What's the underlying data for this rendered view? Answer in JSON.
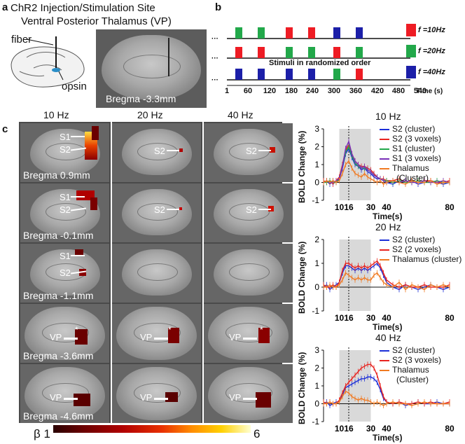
{
  "panel_a": {
    "letter": "a",
    "title_line1": "ChR2 Injection/Stimulation Site",
    "title_line2": "Ventral Posterior Thalamus (VP)",
    "fiber_label": "fiber",
    "opsin_label": "opsin",
    "bregma_label": "Bregma -3.3mm"
  },
  "panel_b": {
    "letter": "b",
    "ellipsis": "···",
    "annotation": "Stimuli in randomized order",
    "time_unit": "Time (s)",
    "x_ticks": [
      "1",
      "60",
      "120",
      "180",
      "240",
      "300",
      "360",
      "420",
      "480",
      "540"
    ],
    "legend": [
      {
        "label": "f =10Hz",
        "color": "#ee1c24"
      },
      {
        "label": "f =20Hz",
        "color": "#22a84a"
      },
      {
        "label": "f =40Hz",
        "color": "#1c1fa8"
      }
    ],
    "rows": [
      [
        "green",
        "green",
        "red",
        "red",
        "blue",
        "blue"
      ],
      [
        "red",
        "red",
        "green",
        "green",
        "red",
        "green"
      ],
      [
        "blue",
        "blue",
        "blue",
        "blue",
        "green",
        "red"
      ]
    ]
  },
  "panel_c": {
    "letter": "c",
    "columns": [
      "10 Hz",
      "20 Hz",
      "40 Hz"
    ],
    "rows": [
      {
        "bregma": "Bregma 0.9mm",
        "labels_10": [
          "S1",
          "S2"
        ],
        "label_20": "S2",
        "label_40": "S2"
      },
      {
        "bregma": "Bregma -0.1mm",
        "labels_10": [
          "S1",
          "S2"
        ],
        "label_20": "S2",
        "label_40": "S2"
      },
      {
        "bregma": "Bregma -1.1mm",
        "labels_10": [
          "S1",
          "S2"
        ],
        "label_20": "",
        "label_40": ""
      },
      {
        "bregma": "Bregma -3.6mm",
        "labels_10": [
          "VP"
        ],
        "label_20": "VP",
        "label_40": "VP"
      },
      {
        "bregma": "Bregma -4.6mm",
        "labels_10": [
          "VP"
        ],
        "label_20": "VP",
        "label_40": "VP"
      }
    ],
    "asterisk": "*",
    "colorbar": {
      "min_label": "β 1",
      "max_label": "6"
    }
  },
  "chart_data": [
    {
      "type": "line",
      "title": "10 Hz",
      "xlabel": "Time(s)",
      "ylabel": "BOLD Change (%)",
      "xlim": [
        0,
        80
      ],
      "ylim": [
        -1,
        3
      ],
      "x_ticks": [
        "10",
        "16",
        "30",
        "40",
        "80"
      ],
      "y_ticks": [
        "-1",
        "0",
        "1",
        "2",
        "3"
      ],
      "stim_window": [
        10,
        30
      ],
      "x": [
        0,
        2,
        4,
        6,
        8,
        10,
        12,
        14,
        16,
        18,
        20,
        22,
        24,
        26,
        28,
        30,
        32,
        34,
        36,
        38,
        40,
        44,
        48,
        52,
        56,
        60,
        64,
        68,
        72,
        76,
        80
      ],
      "series": [
        {
          "name": "S2 (cluster)",
          "color": "#1c2fd8",
          "values": [
            0,
            0.1,
            -0.1,
            0.1,
            0,
            0.2,
            0.8,
            1.6,
            1.9,
            1.4,
            1.0,
            0.9,
            0.7,
            0.8,
            0.6,
            0.5,
            0.3,
            0.2,
            0.2,
            0.1,
            0,
            -0.1,
            0.1,
            0,
            0.1,
            -0.1,
            0,
            0.1,
            0,
            -0.1,
            0
          ]
        },
        {
          "name": "S2 (3 voxels)",
          "color": "#e8231f",
          "values": [
            0.1,
            0,
            0.1,
            -0.1,
            0.1,
            0.3,
            1.0,
            1.8,
            2.1,
            1.6,
            1.2,
            1.0,
            0.9,
            0.9,
            0.8,
            0.7,
            0.5,
            0.3,
            0.2,
            0.2,
            0.1,
            0.1,
            0.2,
            0,
            0.1,
            0,
            0.1,
            0.1,
            0,
            0,
            0.1
          ]
        },
        {
          "name": "S1 (cluster)",
          "color": "#22a84a",
          "values": [
            0,
            0,
            0.1,
            0,
            0,
            0.2,
            0.9,
            1.7,
            2.0,
            1.5,
            1.1,
            0.9,
            0.8,
            0.8,
            0.7,
            0.6,
            0.4,
            0.3,
            0.2,
            0.1,
            0.1,
            0,
            0.1,
            0,
            0,
            0.1,
            0,
            0,
            0.1,
            0,
            0
          ]
        },
        {
          "name": "S1 (3 voxels)",
          "color": "#7a2fb8",
          "values": [
            0,
            0.1,
            0,
            0,
            0.1,
            0.2,
            0.9,
            1.9,
            2.3,
            1.6,
            1.2,
            1.0,
            0.8,
            0.9,
            0.7,
            0.6,
            0.4,
            0.3,
            0.2,
            0.1,
            0,
            0.1,
            0,
            0.1,
            0,
            0,
            0.1,
            0,
            0,
            0.1,
            0
          ]
        },
        {
          "name": "Thalamus (Cluster)",
          "color": "#f07a22",
          "values": [
            0,
            0.1,
            0,
            0.1,
            0,
            0.1,
            0.5,
            1.0,
            1.2,
            0.8,
            0.5,
            0.4,
            0.3,
            0.5,
            0.3,
            0.2,
            0.1,
            0,
            0.1,
            -0.1,
            0,
            0.1,
            0,
            -0.1,
            0.1,
            0,
            0,
            0.1,
            -0.1,
            0,
            0
          ]
        }
      ]
    },
    {
      "type": "line",
      "title": "20 Hz",
      "xlabel": "Time(s)",
      "ylabel": "BOLD Change (%)",
      "xlim": [
        0,
        80
      ],
      "ylim": [
        -1,
        2
      ],
      "x_ticks": [
        "10",
        "16",
        "30",
        "40",
        "80"
      ],
      "y_ticks": [
        "-1",
        "0",
        "1",
        "2"
      ],
      "stim_window": [
        10,
        30
      ],
      "x": [
        0,
        2,
        4,
        6,
        8,
        10,
        12,
        14,
        16,
        18,
        20,
        22,
        24,
        26,
        28,
        30,
        32,
        34,
        36,
        38,
        40,
        44,
        48,
        52,
        56,
        60,
        64,
        68,
        72,
        76,
        80
      ],
      "series": [
        {
          "name": "S2 (cluster)",
          "color": "#1c2fd8",
          "values": [
            0,
            0.1,
            -0.1,
            0,
            0.1,
            0.2,
            0.6,
            0.9,
            0.9,
            0.8,
            0.7,
            0.8,
            0.7,
            0.8,
            0.7,
            0.8,
            0.9,
            1.0,
            0.8,
            0.5,
            0.2,
            0,
            -0.1,
            0.1,
            0,
            -0.1,
            0,
            0.1,
            0,
            -0.1,
            0
          ]
        },
        {
          "name": "S2 (2 voxels)",
          "color": "#e8231f",
          "values": [
            0.1,
            0,
            0,
            0.1,
            0,
            0.2,
            0.7,
            1.0,
            1.0,
            0.9,
            0.8,
            0.9,
            0.8,
            0.9,
            0.8,
            0.9,
            1.0,
            1.1,
            0.9,
            0.6,
            0.3,
            0.1,
            0,
            0.1,
            0,
            0,
            0.1,
            0,
            0,
            0,
            0.1
          ]
        },
        {
          "name": "Thalamus (cluster)",
          "color": "#f07a22",
          "values": [
            0,
            0,
            0.1,
            0,
            0,
            0.1,
            0.3,
            0.6,
            0.5,
            0.4,
            0.3,
            0.4,
            0.3,
            0.4,
            0.3,
            0.3,
            0.5,
            0.6,
            0.4,
            0.2,
            0.1,
            0,
            0.2,
            -0.1,
            0.1,
            0,
            -0.1,
            0.1,
            0,
            0.1,
            0
          ]
        }
      ]
    },
    {
      "type": "line",
      "title": "40 Hz",
      "xlabel": "Time(s)",
      "ylabel": "BOLD Change (%)",
      "xlim": [
        0,
        80
      ],
      "ylim": [
        -1,
        3
      ],
      "x_ticks": [
        "10",
        "16",
        "30",
        "40",
        "80"
      ],
      "y_ticks": [
        "-1",
        "0",
        "1",
        "2",
        "3"
      ],
      "stim_window": [
        10,
        30
      ],
      "x": [
        0,
        2,
        4,
        6,
        8,
        10,
        12,
        14,
        16,
        18,
        20,
        22,
        24,
        26,
        28,
        30,
        32,
        34,
        36,
        38,
        40,
        44,
        48,
        52,
        56,
        60,
        64,
        68,
        72,
        76,
        80
      ],
      "series": [
        {
          "name": "S2 (cluster)",
          "color": "#1c2fd8",
          "values": [
            0,
            0.1,
            -0.1,
            0,
            0.1,
            0.1,
            0.5,
            0.9,
            1.0,
            1.1,
            1.2,
            1.3,
            1.4,
            1.4,
            1.5,
            1.5,
            1.4,
            1.2,
            0.8,
            0.3,
            0.1,
            0,
            0.1,
            -0.1,
            0,
            0.1,
            0,
            0,
            0.1,
            0,
            0
          ]
        },
        {
          "name": "S2 (3 voxels)",
          "color": "#e8231f",
          "values": [
            0.1,
            0,
            0.1,
            0,
            0,
            0.2,
            0.6,
            1.0,
            1.2,
            1.4,
            1.6,
            1.8,
            2.0,
            2.1,
            2.2,
            2.2,
            2.0,
            1.6,
            1.0,
            0.4,
            0.1,
            0,
            0.1,
            0,
            0,
            0.1,
            0,
            0.1,
            0,
            0,
            0.1
          ]
        },
        {
          "name": "Thalamus (Cluster)",
          "color": "#f07a22",
          "values": [
            0,
            0,
            0.1,
            0,
            0,
            0.1,
            0.4,
            0.7,
            0.6,
            0.4,
            0.3,
            0.2,
            0.3,
            0.2,
            0.2,
            0.1,
            0,
            0.1,
            0,
            -0.1,
            0,
            0.1,
            0,
            0,
            -0.1,
            0,
            0.1,
            0,
            0,
            0,
            0
          ]
        }
      ]
    }
  ]
}
